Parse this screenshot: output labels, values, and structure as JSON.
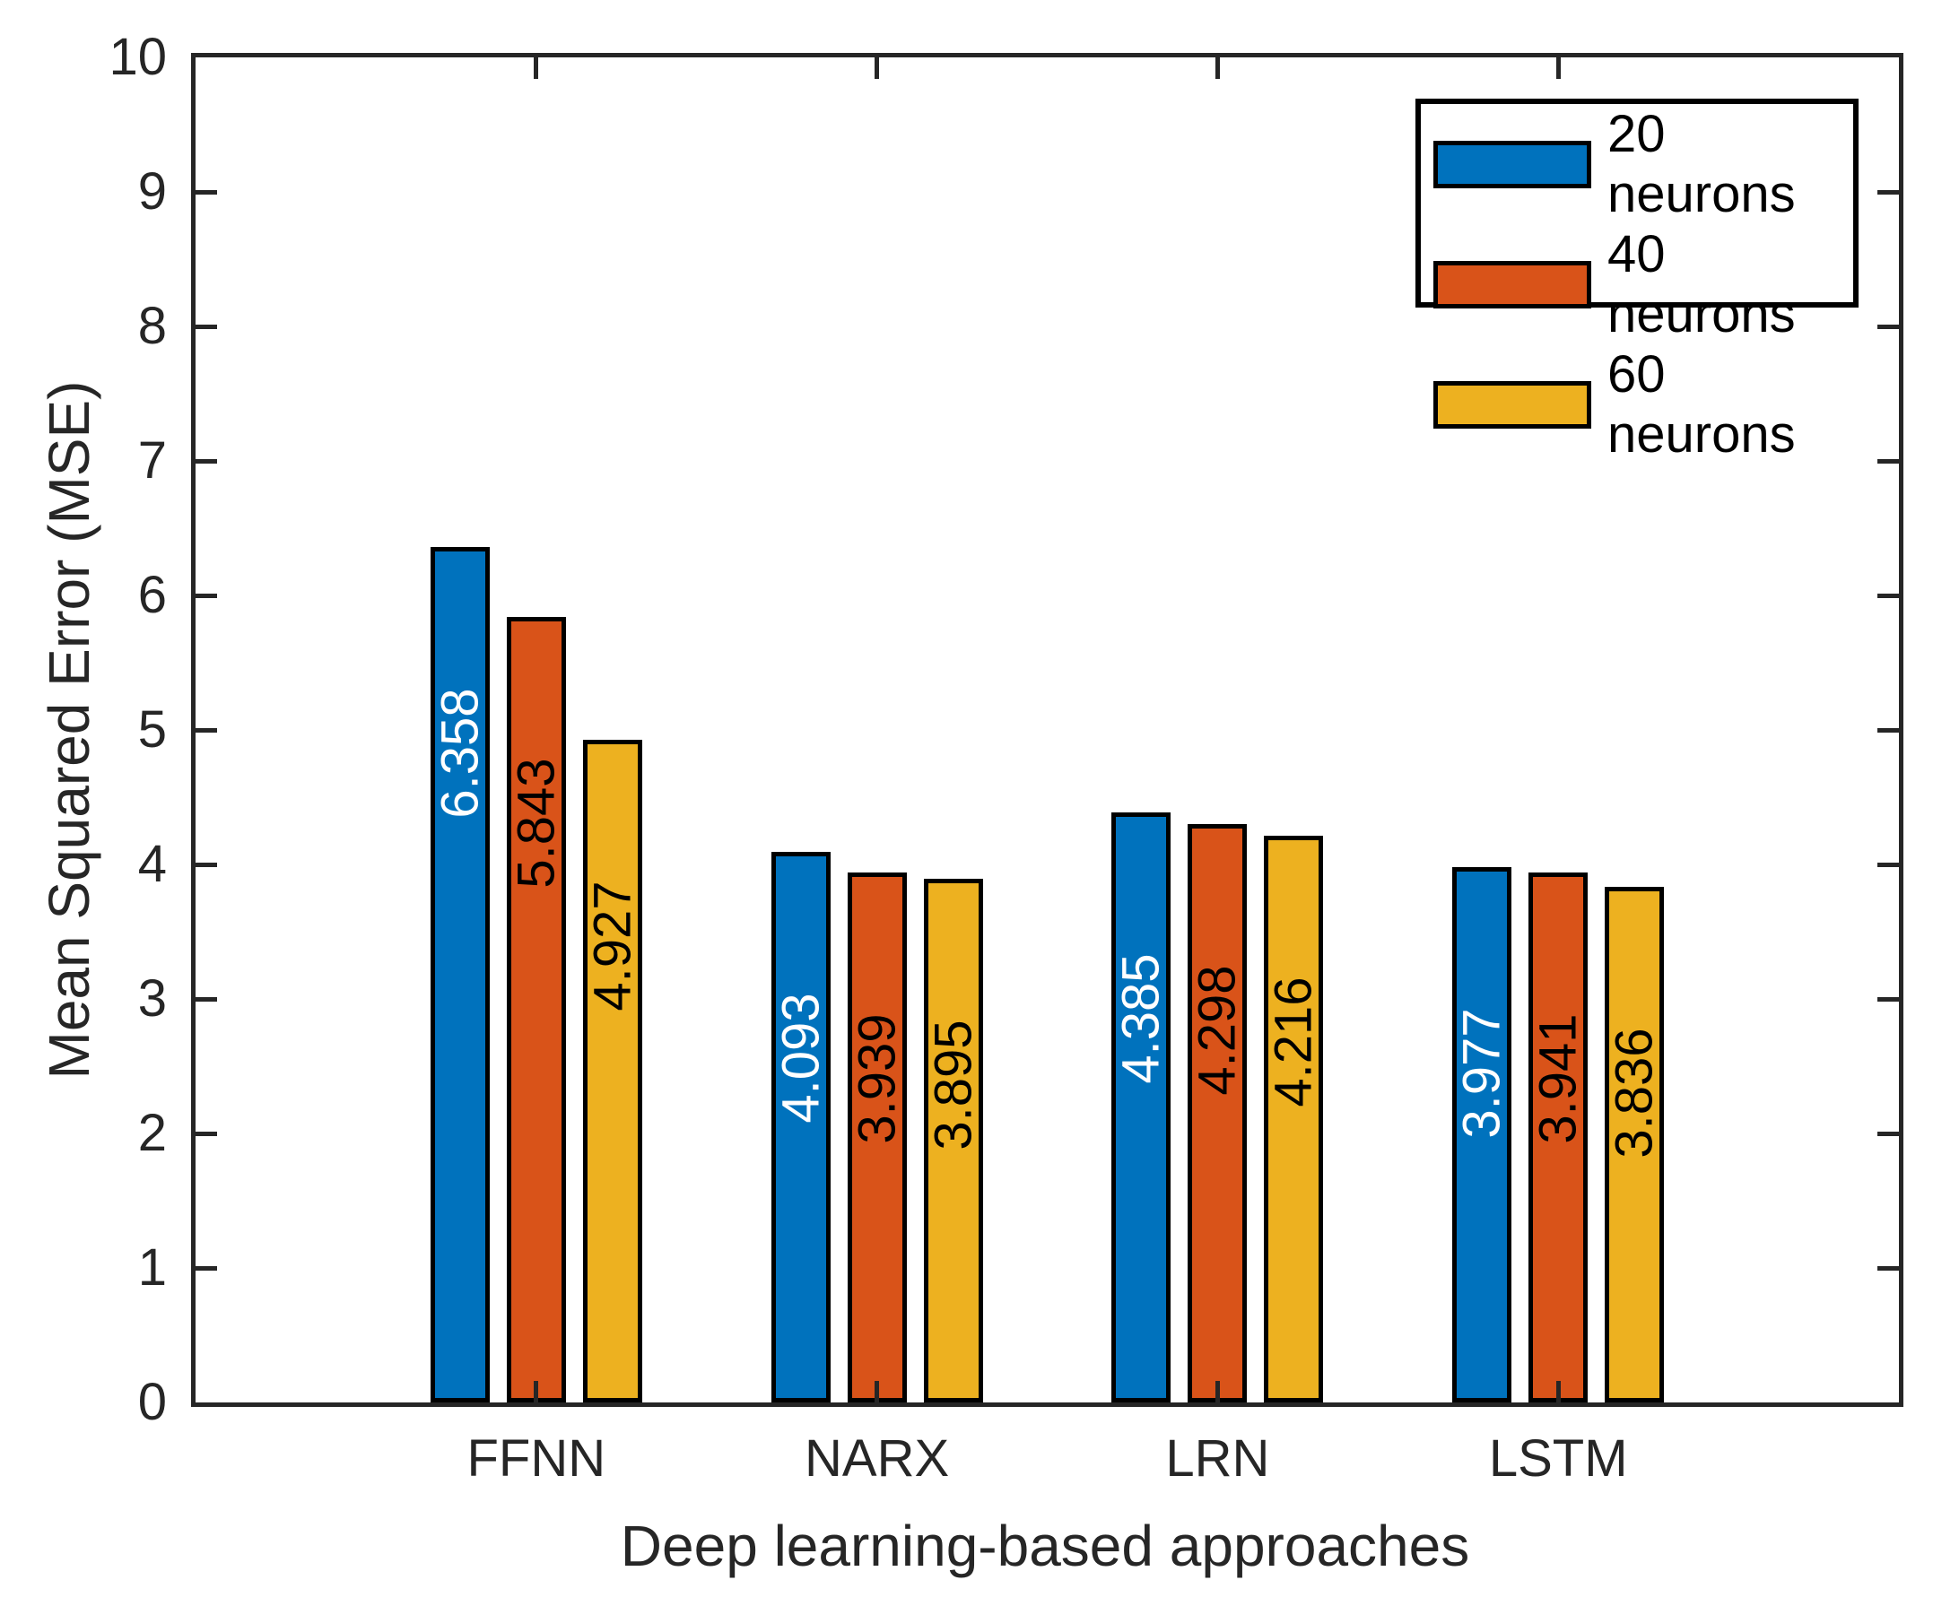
{
  "figure": {
    "background": "#ffffff",
    "axes_color": "#262626"
  },
  "chart_data": {
    "type": "bar",
    "title": "",
    "xlabel": "Deep learning-based approaches",
    "ylabel": "Mean Squared Error (MSE)",
    "categories": [
      "FFNN",
      "NARX",
      "LRN",
      "LSTM"
    ],
    "series": [
      {
        "name": "20 neurons",
        "color": "#0072BD",
        "label_color": "#ffffff",
        "values": [
          6.358,
          4.093,
          4.385,
          3.977
        ]
      },
      {
        "name": "40 neurons",
        "color": "#D95319",
        "label_color": "#000000",
        "values": [
          5.843,
          3.939,
          4.298,
          3.941
        ]
      },
      {
        "name": "60 neurons",
        "color": "#EDB120",
        "label_color": "#000000",
        "values": [
          4.927,
          3.895,
          4.216,
          3.836
        ]
      }
    ],
    "ylim": [
      0,
      10
    ],
    "yticks": [
      0,
      1,
      2,
      3,
      4,
      5,
      6,
      7,
      8,
      9,
      10
    ],
    "bar_edge_color": "#000000",
    "value_label_rotation": 90,
    "grid": false,
    "legend_position": "top-right"
  }
}
